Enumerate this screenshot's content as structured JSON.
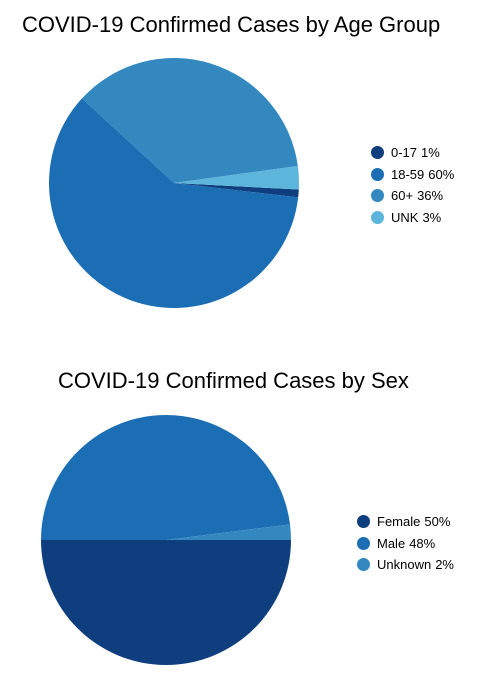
{
  "chart_data": [
    {
      "type": "pie",
      "title": "COVID-19 Confirmed Cases by Age Group",
      "legend_position": "right",
      "slices": [
        {
          "label": "0-17",
          "percent_label": "1%",
          "value": 1,
          "color": "#0e3e7e"
        },
        {
          "label": "18-59",
          "percent_label": "60%",
          "value": 60,
          "color": "#1c6eb4"
        },
        {
          "label": "60+",
          "percent_label": "36%",
          "value": 36,
          "color": "#3388c0"
        },
        {
          "label": "UNK",
          "percent_label": "3%",
          "value": 3,
          "color": "#5cb6dc"
        }
      ]
    },
    {
      "type": "pie",
      "title": "COVID-19 Confirmed Cases by Sex",
      "legend_position": "right",
      "slices": [
        {
          "label": "Female",
          "percent_label": "50%",
          "value": 50,
          "color": "#0e3e7e"
        },
        {
          "label": "Male",
          "percent_label": "48%",
          "value": 48,
          "color": "#1c6eb4"
        },
        {
          "label": "Unknown",
          "percent_label": "2%",
          "value": 2,
          "color": "#3388c0"
        }
      ]
    }
  ]
}
